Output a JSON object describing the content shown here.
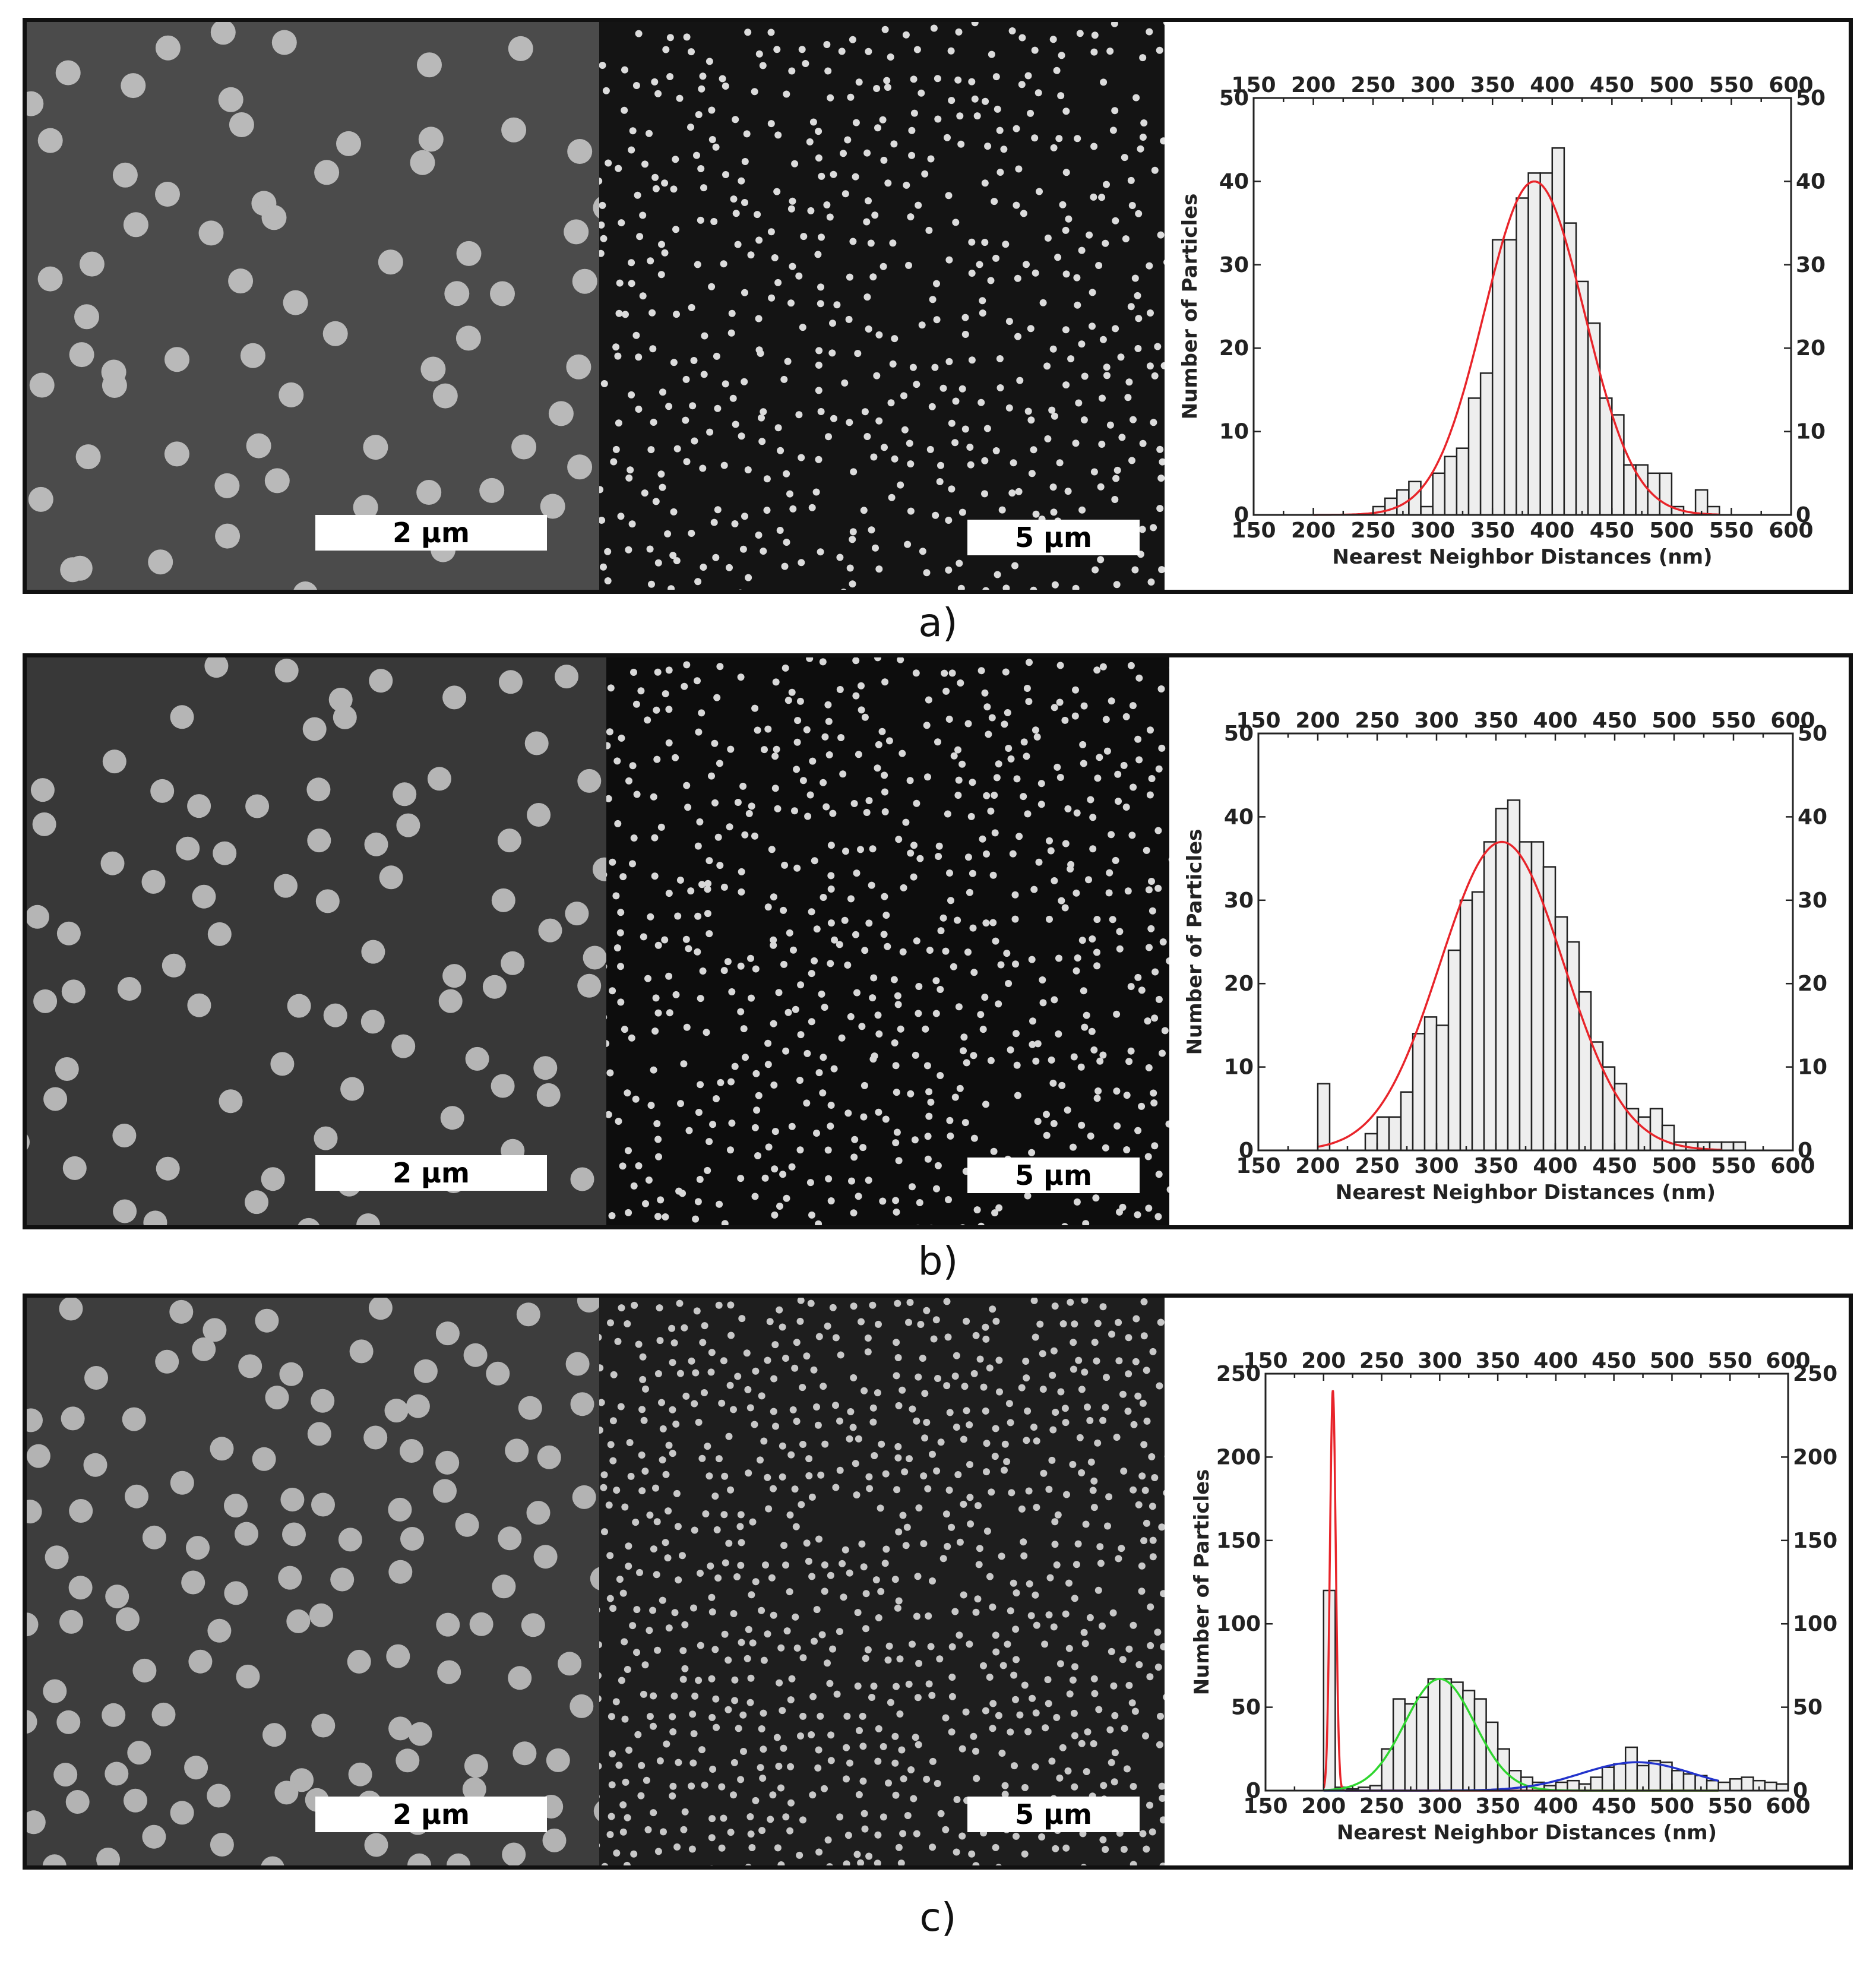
{
  "figure": {
    "panels": [
      {
        "id": "a",
        "caption": "a)",
        "sem_left": {
          "scale_bar": "2 µm"
        },
        "sem_right": {
          "scale_bar": "5 µm"
        },
        "chart_data": {
          "type": "bar",
          "xlabel": "Nearest Neighbor Distances (nm)",
          "ylabel": "Number of Particles",
          "xlim": [
            150,
            600
          ],
          "ylim": [
            0,
            50
          ],
          "xticks": [
            150,
            200,
            250,
            300,
            350,
            400,
            450,
            500,
            550,
            600
          ],
          "yticks": [
            0,
            10,
            20,
            30,
            40,
            50
          ],
          "bin_width": 10,
          "bins": [
            [
              250,
              1
            ],
            [
              260,
              2
            ],
            [
              270,
              3
            ],
            [
              280,
              4
            ],
            [
              290,
              1
            ],
            [
              300,
              5
            ],
            [
              310,
              7
            ],
            [
              320,
              8
            ],
            [
              330,
              14
            ],
            [
              340,
              17
            ],
            [
              350,
              33
            ],
            [
              360,
              33
            ],
            [
              370,
              38
            ],
            [
              380,
              41
            ],
            [
              390,
              41
            ],
            [
              400,
              44
            ],
            [
              410,
              35
            ],
            [
              420,
              28
            ],
            [
              430,
              23
            ],
            [
              440,
              14
            ],
            [
              450,
              12
            ],
            [
              460,
              6
            ],
            [
              470,
              6
            ],
            [
              480,
              5
            ],
            [
              490,
              5
            ],
            [
              500,
              1
            ],
            [
              510,
              0
            ],
            [
              520,
              3
            ],
            [
              530,
              1
            ]
          ],
          "fits": [
            {
              "color": "#e8242a",
              "mean": 385,
              "sigma": 42,
              "amplitude": 40
            }
          ]
        }
      },
      {
        "id": "b",
        "caption": "b)",
        "sem_left": {
          "scale_bar": "2 µm"
        },
        "sem_right": {
          "scale_bar": "5 µm"
        },
        "chart_data": {
          "type": "bar",
          "xlabel": "Nearest Neighbor Distances (nm)",
          "ylabel": "Number of Particles",
          "xlim": [
            150,
            600
          ],
          "ylim": [
            0,
            50
          ],
          "xticks": [
            150,
            200,
            250,
            300,
            350,
            400,
            450,
            500,
            550,
            600
          ],
          "yticks": [
            0,
            10,
            20,
            30,
            40,
            50
          ],
          "bin_width": 10,
          "bins": [
            [
              200,
              8
            ],
            [
              210,
              0
            ],
            [
              220,
              0
            ],
            [
              230,
              0
            ],
            [
              240,
              2
            ],
            [
              250,
              4
            ],
            [
              260,
              4
            ],
            [
              270,
              7
            ],
            [
              280,
              14
            ],
            [
              290,
              16
            ],
            [
              300,
              15
            ],
            [
              310,
              24
            ],
            [
              320,
              30
            ],
            [
              330,
              31
            ],
            [
              340,
              37
            ],
            [
              350,
              41
            ],
            [
              360,
              42
            ],
            [
              370,
              37
            ],
            [
              380,
              37
            ],
            [
              390,
              34
            ],
            [
              400,
              28
            ],
            [
              410,
              25
            ],
            [
              420,
              19
            ],
            [
              430,
              13
            ],
            [
              440,
              10
            ],
            [
              450,
              8
            ],
            [
              460,
              5
            ],
            [
              470,
              4
            ],
            [
              480,
              5
            ],
            [
              490,
              3
            ],
            [
              500,
              1
            ],
            [
              510,
              1
            ],
            [
              520,
              1
            ],
            [
              530,
              1
            ],
            [
              540,
              1
            ],
            [
              550,
              1
            ]
          ],
          "fits": [
            {
              "color": "#e8242a",
              "mean": 355,
              "sigma": 52,
              "amplitude": 37
            }
          ]
        }
      },
      {
        "id": "c",
        "caption": "c)",
        "sem_left": {
          "scale_bar": "2 µm"
        },
        "sem_right": {
          "scale_bar": "5 µm"
        },
        "chart_data": {
          "type": "bar",
          "xlabel": "Nearest Neighbor Distances (nm)",
          "ylabel": "Number of Particles",
          "xlim": [
            150,
            600
          ],
          "ylim": [
            0,
            250
          ],
          "xticks": [
            150,
            200,
            250,
            300,
            350,
            400,
            450,
            500,
            550,
            600
          ],
          "yticks": [
            0,
            50,
            100,
            150,
            200,
            250
          ],
          "bin_width": 10,
          "bins": [
            [
              200,
              120
            ],
            [
              210,
              2
            ],
            [
              220,
              1
            ],
            [
              230,
              2
            ],
            [
              240,
              3
            ],
            [
              250,
              25
            ],
            [
              260,
              55
            ],
            [
              270,
              52
            ],
            [
              280,
              56
            ],
            [
              290,
              67
            ],
            [
              300,
              67
            ],
            [
              310,
              65
            ],
            [
              320,
              60
            ],
            [
              330,
              55
            ],
            [
              340,
              41
            ],
            [
              350,
              25
            ],
            [
              360,
              12
            ],
            [
              370,
              8
            ],
            [
              380,
              5
            ],
            [
              390,
              3
            ],
            [
              400,
              5
            ],
            [
              410,
              6
            ],
            [
              420,
              4
            ],
            [
              430,
              8
            ],
            [
              440,
              14
            ],
            [
              450,
              16
            ],
            [
              460,
              26
            ],
            [
              470,
              15
            ],
            [
              480,
              18
            ],
            [
              490,
              17
            ],
            [
              500,
              12
            ],
            [
              510,
              10
            ],
            [
              520,
              9
            ],
            [
              530,
              6
            ],
            [
              540,
              5
            ],
            [
              550,
              7
            ],
            [
              560,
              8
            ],
            [
              570,
              6
            ],
            [
              580,
              5
            ],
            [
              590,
              4
            ]
          ],
          "fits": [
            {
              "color": "#e8242a",
              "mean": 208,
              "sigma": 2.5,
              "amplitude": 240
            },
            {
              "color": "#2fd62f",
              "mean": 300,
              "sigma": 30,
              "amplitude": 67
            },
            {
              "color": "#2233cc",
              "mean": 470,
              "sigma": 48,
              "amplitude": 17
            }
          ]
        }
      }
    ]
  }
}
